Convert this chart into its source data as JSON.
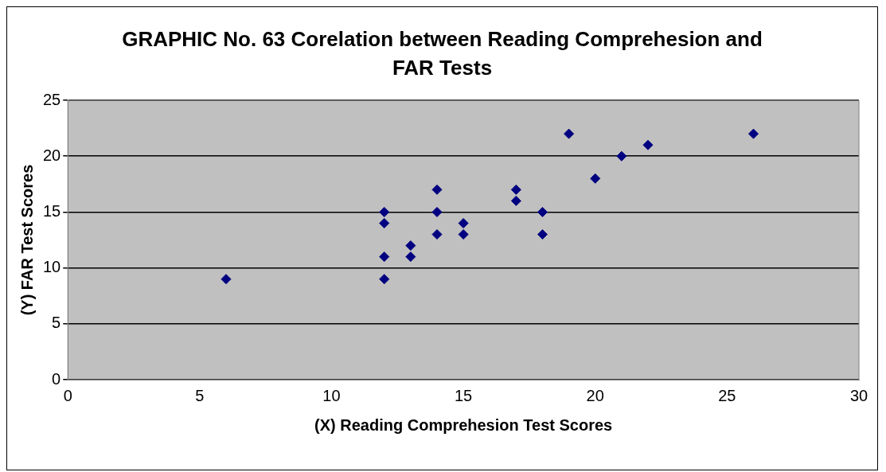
{
  "chart_data": {
    "type": "scatter",
    "title": "GRAPHIC No. 63 Corelation between Reading Comprehesion and FAR Tests",
    "xlabel": "(X) Reading Comprehesion Test Scores",
    "ylabel": "(Y) FAR Test Scores",
    "series": [
      {
        "color": "#000080",
        "x": [
          6,
          12,
          12,
          12,
          12,
          13,
          13,
          14,
          14,
          14,
          15,
          15,
          17,
          17,
          18,
          18,
          19,
          20,
          21,
          22,
          26
        ],
        "values": [
          9,
          15,
          14,
          11,
          9,
          12,
          11,
          17,
          15,
          13,
          14,
          13,
          17,
          16,
          15,
          13,
          22,
          18,
          20,
          21,
          22
        ]
      }
    ],
    "xlim": [
      0,
      30
    ],
    "xticks": [
      0,
      5,
      10,
      15,
      20,
      25,
      30
    ],
    "ylim": [
      0,
      25
    ],
    "yticks": [
      0,
      5,
      10,
      15,
      20,
      25
    ],
    "grid": "y",
    "marker": "diamond",
    "legend": false
  }
}
